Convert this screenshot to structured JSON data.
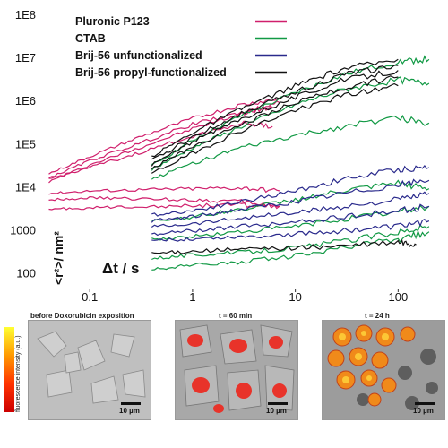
{
  "chart_data": {
    "type": "line",
    "xscale": "log",
    "yscale": "log",
    "xlim": [
      0.02,
      250
    ],
    "ylim": [
      70,
      100000000
    ],
    "xlabel": "Δt / s",
    "ylabel": "<r²>/ nm²",
    "x_ticks": [
      {
        "value": 0.1,
        "label": "0.1"
      },
      {
        "value": 1,
        "label": "1"
      },
      {
        "value": 10,
        "label": "10"
      },
      {
        "value": 100,
        "label": "100"
      }
    ],
    "y_ticks": [
      {
        "value": 100,
        "label": "100"
      },
      {
        "value": 1000,
        "label": "1000"
      },
      {
        "value": 10000,
        "label": "1E4"
      },
      {
        "value": 100000,
        "label": "1E5"
      },
      {
        "value": 1000000,
        "label": "1E6"
      },
      {
        "value": 10000000,
        "label": "1E7"
      },
      {
        "value": 100000000,
        "label": "1E8"
      }
    ],
    "grid": false,
    "legend_position": "top-left",
    "series": [
      {
        "name": "Pluronic P123",
        "color": "#d01f6c",
        "traces": [
          {
            "x": [
              0.04,
              0.1,
              0.3,
              1,
              3,
              7
            ],
            "y": [
              13000,
              32000,
              80000,
              220000,
              500000,
              900000
            ]
          },
          {
            "x": [
              0.04,
              0.1,
              0.3,
              1,
              3,
              7
            ],
            "y": [
              20000,
              50000,
              140000,
              380000,
              800000,
              1100000
            ]
          },
          {
            "x": [
              0.04,
              0.1,
              0.3,
              1,
              3,
              6
            ],
            "y": [
              16000,
              40000,
              100000,
              280000,
              520000,
              700000
            ]
          },
          {
            "x": [
              0.04,
              0.1,
              0.3,
              1,
              3,
              6
            ],
            "y": [
              15000,
              28000,
              60000,
              150000,
              300000,
              250000
            ]
          },
          {
            "x": [
              0.04,
              0.1,
              0.3,
              1,
              3,
              7
            ],
            "y": [
              7000,
              8000,
              8500,
              9000,
              9500,
              8000
            ]
          },
          {
            "x": [
              0.04,
              0.1,
              0.3,
              1,
              3,
              7
            ],
            "y": [
              5000,
              5500,
              5200,
              5000,
              4500,
              3500
            ]
          },
          {
            "x": [
              0.04,
              0.1,
              0.3,
              1,
              3,
              7
            ],
            "y": [
              3000,
              3200,
              3500,
              3600,
              3800,
              3500
            ]
          }
        ]
      },
      {
        "name": "CTAB",
        "color": "#119944",
        "traces": [
          {
            "x": [
              0.4,
              1,
              3,
              10,
              30,
              100,
              200
            ],
            "y": [
              30000,
              120000,
              450000,
              1500000,
              4000000,
              8000000,
              9000000
            ]
          },
          {
            "x": [
              0.4,
              1,
              3,
              10,
              30,
              100,
              200
            ],
            "y": [
              25000,
              80000,
              250000,
              800000,
              1800000,
              3000000,
              2500000
            ]
          },
          {
            "x": [
              0.4,
              1,
              3,
              10,
              30,
              100,
              200
            ],
            "y": [
              15000,
              35000,
              80000,
              150000,
              250000,
              400000,
              300000
            ]
          },
          {
            "x": [
              0.4,
              1,
              3,
              10,
              30,
              100,
              200
            ],
            "y": [
              1600,
              2000,
              3000,
              5000,
              8000,
              12000,
              9000
            ]
          },
          {
            "x": [
              0.4,
              1,
              3,
              10,
              30,
              100,
              200
            ],
            "y": [
              600,
              700,
              900,
              1200,
              1800,
              2600,
              3500
            ]
          },
          {
            "x": [
              0.4,
              1,
              3,
              10,
              30,
              100,
              200
            ],
            "y": [
              220,
              260,
              300,
              380,
              550,
              900,
              1200
            ]
          },
          {
            "x": [
              0.4,
              1,
              3,
              10,
              30,
              100,
              200
            ],
            "y": [
              120,
              150,
              180,
              250,
              380,
              600,
              900
            ]
          }
        ]
      },
      {
        "name": "Brij-56 unfunctionalized",
        "color": "#2a2a8c",
        "traces": [
          {
            "x": [
              0.4,
              1,
              3,
              10,
              30,
              100,
              200
            ],
            "y": [
              2200,
              2800,
              4500,
              8000,
              15000,
              25000,
              28000
            ]
          },
          {
            "x": [
              0.4,
              1,
              3,
              10,
              30,
              100,
              200
            ],
            "y": [
              1600,
              2000,
              3000,
              4500,
              7000,
              11000,
              14000
            ]
          },
          {
            "x": [
              0.4,
              1,
              3,
              10,
              30,
              100,
              200
            ],
            "y": [
              1200,
              1400,
              1900,
              2500,
              3500,
              5000,
              7000
            ]
          },
          {
            "x": [
              0.4,
              1,
              3,
              10,
              30,
              100,
              200
            ],
            "y": [
              800,
              950,
              1200,
              1500,
              2000,
              2800,
              3500
            ]
          },
          {
            "x": [
              0.4,
              1,
              3,
              10,
              30,
              100,
              200
            ],
            "y": [
              550,
              620,
              700,
              800,
              950,
              1200,
              1600
            ]
          }
        ]
      },
      {
        "name": "Brij-56 propyl-functionalized",
        "color": "#111111",
        "traces": [
          {
            "x": [
              0.4,
              1,
              3,
              10,
              30,
              100
            ],
            "y": [
              50000,
              180000,
              650000,
              2200000,
              5500000,
              9000000
            ]
          },
          {
            "x": [
              0.4,
              1,
              3,
              10,
              30,
              100
            ],
            "y": [
              40000,
              140000,
              500000,
              1600000,
              4000000,
              6500000
            ]
          },
          {
            "x": [
              0.4,
              1,
              3,
              10,
              30,
              100
            ],
            "y": [
              32000,
              110000,
              380000,
              1200000,
              3000000,
              5000000
            ]
          },
          {
            "x": [
              0.4,
              1,
              3,
              10,
              30,
              100
            ],
            "y": [
              26000,
              85000,
              280000,
              900000,
              2000000,
              3500000
            ]
          },
          {
            "x": [
              0.4,
              1,
              3,
              10,
              30,
              100
            ],
            "y": [
              20000,
              60000,
              200000,
              600000,
              1300000,
              2200000
            ]
          },
          {
            "x": [
              0.4,
              1,
              3,
              10,
              30,
              100,
              150
            ],
            "y": [
              280,
              320,
              350,
              380,
              420,
              500,
              450
            ]
          }
        ]
      }
    ]
  },
  "panels": [
    {
      "title": "before Doxorubicin exposition",
      "scale": "10 µm"
    },
    {
      "title": "t = 60 min",
      "scale": "10 µm"
    },
    {
      "title": "t = 24 h",
      "scale": "10 µm"
    }
  ],
  "colorbar_label": "fluorescence intensity (a.u.)"
}
